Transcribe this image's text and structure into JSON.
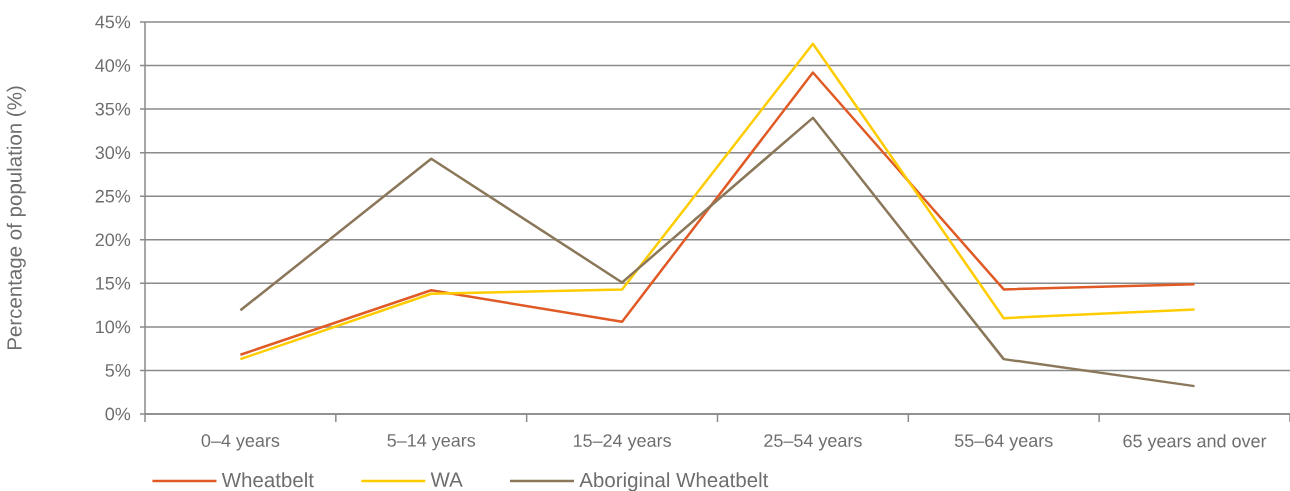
{
  "chart_data": {
    "type": "line",
    "categories": [
      "0–4 years",
      "5–14 years",
      "15–24 years",
      "25–54 years",
      "55–64 years",
      "65 years and over"
    ],
    "ylabel": "Percentage of population (%)",
    "series": [
      {
        "name": "Wheatbelt",
        "color": "#e05a26",
        "values": [
          6.8,
          14.2,
          10.6,
          39.2,
          14.3,
          14.9
        ]
      },
      {
        "name": "WA",
        "color": "#ffcc00",
        "values": [
          6.3,
          13.8,
          14.3,
          42.5,
          11.0,
          12.0
        ]
      },
      {
        "name": "Aboriginal Wheatbelt",
        "color": "#8b7759",
        "values": [
          11.9,
          29.3,
          15.1,
          34.0,
          6.3,
          3.2
        ]
      }
    ],
    "ylim": [
      0,
      45
    ],
    "yticks": [
      {
        "value": 0,
        "label": "0%"
      },
      {
        "value": 5,
        "label": "5%"
      },
      {
        "value": 10,
        "label": "10%"
      },
      {
        "value": 15,
        "label": "15%"
      },
      {
        "value": 20,
        "label": "20%"
      },
      {
        "value": 25,
        "label": "25%"
      },
      {
        "value": 30,
        "label": "30%"
      },
      {
        "value": 35,
        "label": "35%"
      },
      {
        "value": 40,
        "label": "40%"
      },
      {
        "value": 45,
        "label": "45%"
      }
    ],
    "grid": "y",
    "legend": "bottom",
    "marker": "none",
    "line_style": "solid"
  }
}
